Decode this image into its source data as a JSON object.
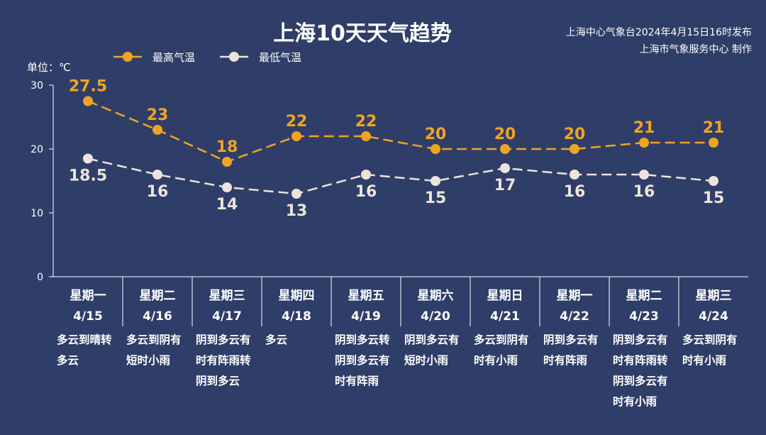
{
  "page": {
    "title": "上海10天天气趋势",
    "issuer_line1": "上海中心气象台2024年4月15日16时发布",
    "issuer_line2": "上海市气象服务中心 制作",
    "unit_label": "单位：℃"
  },
  "colors": {
    "background": "#2f3e68",
    "high": "#f0a422",
    "low": "#ece4dc",
    "axis": "#ffffff"
  },
  "chart_data": {
    "type": "line",
    "ylim": [
      0,
      30
    ],
    "yticks": [
      0,
      10,
      20,
      30
    ],
    "legend_position": "top-left",
    "grid": false,
    "categories": [
      {
        "weekday": "星期一",
        "date": "4/15",
        "weather": [
          "多云到晴转",
          "多云"
        ]
      },
      {
        "weekday": "星期二",
        "date": "4/16",
        "weather": [
          "多云到阴有",
          "短时小雨"
        ]
      },
      {
        "weekday": "星期三",
        "date": "4/17",
        "weather": [
          "阴到多云有",
          "时有阵雨转",
          "阴到多云"
        ]
      },
      {
        "weekday": "星期四",
        "date": "4/18",
        "weather": [
          "多云"
        ]
      },
      {
        "weekday": "星期五",
        "date": "4/19",
        "weather": [
          "阴到多云转",
          "阴到多云有",
          "时有阵雨"
        ]
      },
      {
        "weekday": "星期六",
        "date": "4/20",
        "weather": [
          "阴到多云有",
          "短时小雨"
        ]
      },
      {
        "weekday": "星期日",
        "date": "4/21",
        "weather": [
          "多云到阴有",
          "时有小雨"
        ]
      },
      {
        "weekday": "星期一",
        "date": "4/22",
        "weather": [
          "阴到多云有",
          "时有阵雨"
        ]
      },
      {
        "weekday": "星期二",
        "date": "4/23",
        "weather": [
          "阴到多云有",
          "时有阵雨转",
          "阴到多云有",
          "时有小雨"
        ]
      },
      {
        "weekday": "星期三",
        "date": "4/24",
        "weather": [
          "多云到阴有",
          "时有小雨"
        ]
      }
    ],
    "series": [
      {
        "name": "最高气温",
        "key": "high",
        "values": [
          27.5,
          23,
          18,
          22,
          22,
          20,
          20,
          20,
          21,
          21
        ],
        "labels": [
          "27.5",
          "23",
          "18",
          "22",
          "22",
          "20",
          "20",
          "20",
          "21",
          "21"
        ]
      },
      {
        "name": "最低气温",
        "key": "low",
        "values": [
          18.5,
          16,
          14,
          13,
          16,
          15,
          17,
          16,
          16,
          15
        ],
        "labels": [
          "18.5",
          "16",
          "14",
          "13",
          "16",
          "15",
          "17",
          "16",
          "16",
          "15"
        ]
      }
    ]
  }
}
